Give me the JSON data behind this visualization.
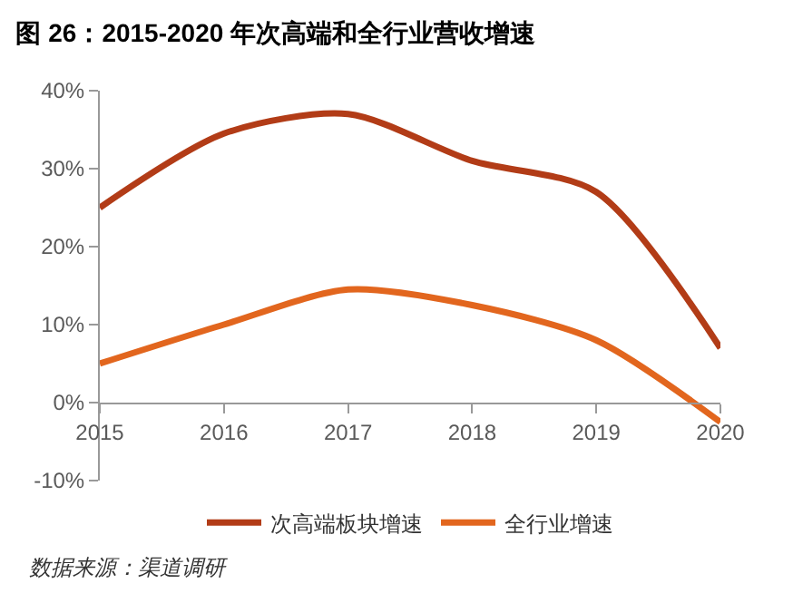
{
  "chart_data": {
    "type": "line",
    "title": "图 26：2015-2020 年次高端和全行业营收增速",
    "categories": [
      "2015",
      "2016",
      "2017",
      "2018",
      "2019",
      "2020"
    ],
    "series": [
      {
        "name": "次高端板块增速",
        "color": "#b23c17",
        "values": [
          25,
          34.5,
          37,
          31,
          27,
          7
        ]
      },
      {
        "name": "全行业增速",
        "color": "#e2661e",
        "values": [
          5,
          10,
          14.5,
          12.5,
          8,
          -2.5
        ]
      }
    ],
    "ylim": [
      -10,
      40
    ],
    "yticks": [
      {
        "value": -10,
        "label": "-10%"
      },
      {
        "value": 0,
        "label": "0%"
      },
      {
        "value": 10,
        "label": "10%"
      },
      {
        "value": 20,
        "label": "20%"
      },
      {
        "value": 30,
        "label": "30%"
      },
      {
        "value": 40,
        "label": "40%"
      }
    ],
    "legend": "bottom",
    "marker": "none",
    "line_style": "solid",
    "annotations": [
      "数据来源：渠道调研"
    ]
  }
}
